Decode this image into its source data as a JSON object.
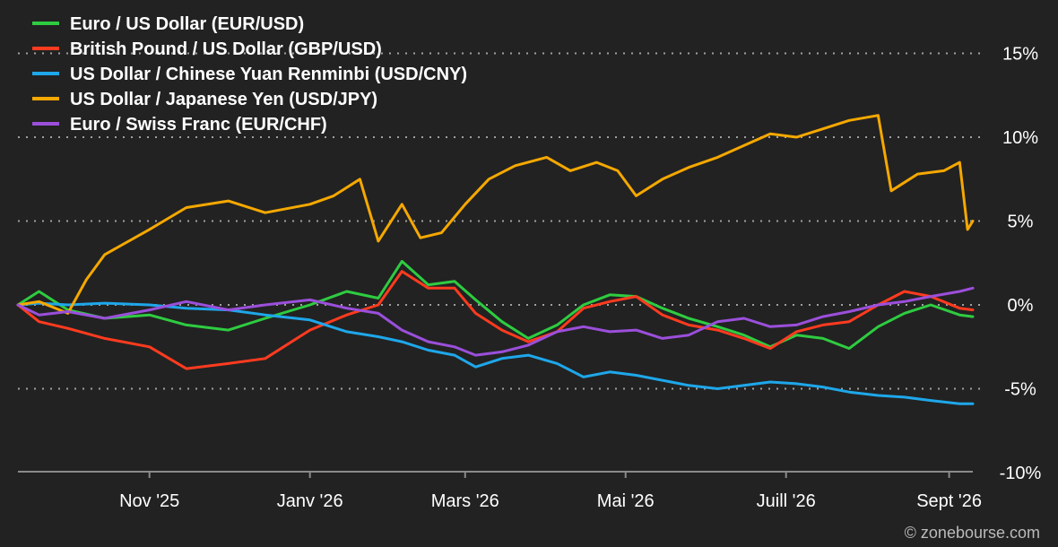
{
  "chart_data": {
    "type": "line",
    "ylim": [
      -10,
      18
    ],
    "yticks": [
      {
        "value": 15,
        "label": "15%"
      },
      {
        "value": 10,
        "label": "10%"
      },
      {
        "value": 5,
        "label": "5%"
      },
      {
        "value": 0,
        "label": "0%"
      },
      {
        "value": -5,
        "label": "-5%"
      },
      {
        "value": -10,
        "label": "-10%"
      }
    ],
    "xlim": [
      "2025-09-12",
      "2026-09-10"
    ],
    "xticks": [
      {
        "date": "2025-11-01",
        "label": "Nov '25"
      },
      {
        "date": "2026-01-01",
        "label": "Janv '26"
      },
      {
        "date": "2026-03-01",
        "label": "Mars '26"
      },
      {
        "date": "2026-05-01",
        "label": "Mai '26"
      },
      {
        "date": "2026-07-01",
        "label": "Juill '26"
      },
      {
        "date": "2026-09-01",
        "label": "Sept '26"
      }
    ],
    "grid": "horizontal dotted",
    "legend_position": "top-left",
    "series": [
      {
        "name": "Euro / US Dollar (EUR/USD)",
        "color": "#2ecc40",
        "x": [
          "2025-09-12",
          "2025-09-20",
          "2025-10-01",
          "2025-10-15",
          "2025-11-01",
          "2025-11-15",
          "2025-12-01",
          "2025-12-15",
          "2026-01-01",
          "2026-01-15",
          "2026-01-27",
          "2026-02-05",
          "2026-02-15",
          "2026-02-25",
          "2026-03-05",
          "2026-03-15",
          "2026-03-25",
          "2026-04-05",
          "2026-04-15",
          "2026-04-25",
          "2026-05-05",
          "2026-05-15",
          "2026-05-25",
          "2026-06-05",
          "2026-06-15",
          "2026-06-25",
          "2026-07-05",
          "2026-07-15",
          "2026-07-25",
          "2026-08-05",
          "2026-08-15",
          "2026-08-25",
          "2026-09-05",
          "2026-09-10"
        ],
        "y": [
          0.0,
          0.8,
          -0.3,
          -0.8,
          -0.6,
          -1.2,
          -1.5,
          -0.8,
          0.0,
          0.8,
          0.4,
          2.6,
          1.2,
          1.4,
          0.3,
          -1.0,
          -2.0,
          -1.2,
          0.0,
          0.6,
          0.5,
          -0.2,
          -0.8,
          -1.3,
          -1.8,
          -2.5,
          -1.8,
          -2.0,
          -2.6,
          -1.3,
          -0.5,
          0.0,
          -0.6,
          -0.7
        ]
      },
      {
        "name": "British Pound / US Dollar (GBP/USD)",
        "color": "#ff3b1f",
        "x": [
          "2025-09-12",
          "2025-09-20",
          "2025-10-01",
          "2025-10-15",
          "2025-11-01",
          "2025-11-15",
          "2025-12-01",
          "2025-12-15",
          "2026-01-01",
          "2026-01-15",
          "2026-01-27",
          "2026-02-05",
          "2026-02-15",
          "2026-02-25",
          "2026-03-05",
          "2026-03-15",
          "2026-03-25",
          "2026-04-05",
          "2026-04-15",
          "2026-04-25",
          "2026-05-05",
          "2026-05-15",
          "2026-05-25",
          "2026-06-05",
          "2026-06-15",
          "2026-06-25",
          "2026-07-05",
          "2026-07-15",
          "2026-07-25",
          "2026-08-05",
          "2026-08-15",
          "2026-08-25",
          "2026-09-05",
          "2026-09-10"
        ],
        "y": [
          0.0,
          -1.0,
          -1.4,
          -2.0,
          -2.5,
          -3.8,
          -3.5,
          -3.2,
          -1.5,
          -0.6,
          0.0,
          2.0,
          1.0,
          1.0,
          -0.5,
          -1.5,
          -2.2,
          -1.6,
          -0.2,
          0.2,
          0.5,
          -0.6,
          -1.2,
          -1.5,
          -2.0,
          -2.6,
          -1.6,
          -1.2,
          -1.0,
          0.0,
          0.8,
          0.5,
          -0.2,
          -0.3
        ]
      },
      {
        "name": "US Dollar / Chinese Yuan Renminbi (USD/CNY)",
        "color": "#1ea7ea",
        "x": [
          "2025-09-12",
          "2025-09-20",
          "2025-10-01",
          "2025-10-15",
          "2025-11-01",
          "2025-11-15",
          "2025-12-01",
          "2025-12-15",
          "2026-01-01",
          "2026-01-15",
          "2026-01-27",
          "2026-02-05",
          "2026-02-15",
          "2026-02-25",
          "2026-03-05",
          "2026-03-15",
          "2026-03-25",
          "2026-04-05",
          "2026-04-15",
          "2026-04-25",
          "2026-05-05",
          "2026-05-15",
          "2026-05-25",
          "2026-06-05",
          "2026-06-15",
          "2026-06-25",
          "2026-07-05",
          "2026-07-15",
          "2026-07-25",
          "2026-08-05",
          "2026-08-15",
          "2026-08-25",
          "2026-09-05",
          "2026-09-10"
        ],
        "y": [
          0.0,
          0.1,
          0.0,
          0.1,
          0.0,
          -0.2,
          -0.3,
          -0.6,
          -0.9,
          -1.6,
          -1.9,
          -2.2,
          -2.7,
          -3.0,
          -3.7,
          -3.2,
          -3.0,
          -3.5,
          -4.3,
          -4.0,
          -4.2,
          -4.5,
          -4.8,
          -5.0,
          -4.8,
          -4.6,
          -4.7,
          -4.9,
          -5.2,
          -5.4,
          -5.5,
          -5.7,
          -5.9,
          -5.9
        ]
      },
      {
        "name": "US Dollar / Japanese Yen (USD/JPY)",
        "color": "#f5a800",
        "x": [
          "2025-09-12",
          "2025-09-20",
          "2025-10-01",
          "2025-10-08",
          "2025-10-15",
          "2025-11-01",
          "2025-11-15",
          "2025-12-01",
          "2025-12-15",
          "2026-01-01",
          "2026-01-10",
          "2026-01-20",
          "2026-01-27",
          "2026-02-05",
          "2026-02-12",
          "2026-02-20",
          "2026-03-01",
          "2026-03-10",
          "2026-03-20",
          "2026-04-01",
          "2026-04-10",
          "2026-04-20",
          "2026-04-28",
          "2026-05-05",
          "2026-05-15",
          "2026-05-25",
          "2026-06-05",
          "2026-06-15",
          "2026-06-25",
          "2026-07-05",
          "2026-07-15",
          "2026-07-25",
          "2026-08-05",
          "2026-08-10",
          "2026-08-20",
          "2026-08-30",
          "2026-09-05",
          "2026-09-08",
          "2026-09-10"
        ],
        "y": [
          0.0,
          0.2,
          -0.5,
          1.5,
          3.0,
          4.5,
          5.8,
          6.2,
          5.5,
          6.0,
          6.5,
          7.5,
          3.8,
          6.0,
          4.0,
          4.3,
          6.0,
          7.5,
          8.3,
          8.8,
          8.0,
          8.5,
          8.0,
          6.5,
          7.5,
          8.2,
          8.8,
          9.5,
          10.2,
          10.0,
          10.5,
          11.0,
          11.3,
          6.8,
          7.8,
          8.0,
          8.5,
          4.5,
          5.0
        ]
      },
      {
        "name": "Euro / Swiss Franc (EUR/CHF)",
        "color": "#9b4fdb",
        "x": [
          "2025-09-12",
          "2025-09-20",
          "2025-10-01",
          "2025-10-15",
          "2025-11-01",
          "2025-11-15",
          "2025-12-01",
          "2025-12-15",
          "2026-01-01",
          "2026-01-15",
          "2026-01-27",
          "2026-02-05",
          "2026-02-15",
          "2026-02-25",
          "2026-03-05",
          "2026-03-15",
          "2026-03-25",
          "2026-04-05",
          "2026-04-15",
          "2026-04-25",
          "2026-05-05",
          "2026-05-15",
          "2026-05-25",
          "2026-06-05",
          "2026-06-15",
          "2026-06-25",
          "2026-07-05",
          "2026-07-15",
          "2026-07-25",
          "2026-08-05",
          "2026-08-15",
          "2026-08-25",
          "2026-09-05",
          "2026-09-10"
        ],
        "y": [
          0.0,
          -0.6,
          -0.4,
          -0.8,
          -0.3,
          0.2,
          -0.3,
          0.0,
          0.3,
          -0.2,
          -0.5,
          -1.5,
          -2.2,
          -2.5,
          -3.0,
          -2.8,
          -2.4,
          -1.6,
          -1.3,
          -1.6,
          -1.5,
          -2.0,
          -1.8,
          -1.0,
          -0.8,
          -1.3,
          -1.2,
          -0.7,
          -0.4,
          0.0,
          0.2,
          0.5,
          0.8,
          1.0
        ]
      }
    ]
  },
  "watermark": "© zonebourse.com",
  "colors": {
    "background": "#222222",
    "grid": "#a0a0a0",
    "axis": "#8a8a8a"
  }
}
